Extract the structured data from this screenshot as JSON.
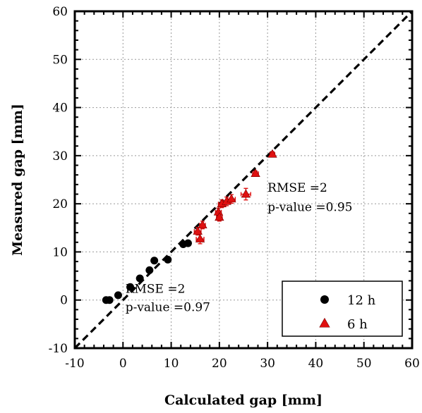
{
  "chart_data": {
    "type": "scatter",
    "title": "",
    "xlabel": "Calculated gap [mm]",
    "ylabel": "Measured gap [mm]",
    "xlim": [
      -10,
      60
    ],
    "ylim": [
      -10,
      60
    ],
    "x_ticks": [
      -10,
      0,
      10,
      20,
      30,
      40,
      50,
      60
    ],
    "y_ticks": [
      -10,
      0,
      10,
      20,
      30,
      40,
      50,
      60
    ],
    "x_tick_labels": [
      "-10",
      "0",
      "10",
      "20",
      "30",
      "40",
      "50",
      "60"
    ],
    "y_tick_labels": [
      "-10",
      "0",
      "10",
      "20",
      "30",
      "40",
      "50",
      "60"
    ],
    "grid": true,
    "legend_position": "bottom-right",
    "reference_line": {
      "style": "dashed",
      "color": "#000000",
      "from": [
        -10,
        -10
      ],
      "to": [
        60,
        60
      ]
    },
    "series": [
      {
        "name": "12 h",
        "marker": "circle",
        "color": "#000000",
        "points": [
          {
            "x": -3.5,
            "y": 0.0
          },
          {
            "x": -2.8,
            "y": 0.0
          },
          {
            "x": -1.0,
            "y": 1.0
          },
          {
            "x": 1.5,
            "y": 2.7
          },
          {
            "x": 3.5,
            "y": 4.5
          },
          {
            "x": 5.5,
            "y": 6.2
          },
          {
            "x": 6.5,
            "y": 8.2
          },
          {
            "x": 9.3,
            "y": 8.4
          },
          {
            "x": 12.5,
            "y": 11.6
          },
          {
            "x": 13.5,
            "y": 11.8
          }
        ]
      },
      {
        "name": "6 h",
        "marker": "triangle",
        "color": "#e01010",
        "points": [
          {
            "x": 15.5,
            "y": 14.3,
            "xerr": 0.7,
            "yerr": 0.8
          },
          {
            "x": 16.0,
            "y": 12.7,
            "xerr": 0.8,
            "yerr": 1.0
          },
          {
            "x": 16.5,
            "y": 15.6,
            "xerr": 0.6,
            "yerr": 0.8
          },
          {
            "x": 19.8,
            "y": 18.3,
            "xerr": 0.6,
            "yerr": 0.8
          },
          {
            "x": 20.0,
            "y": 17.2,
            "xerr": 0.6,
            "yerr": 0.8
          },
          {
            "x": 20.5,
            "y": 20.0,
            "xerr": 0.7,
            "yerr": 0.8
          },
          {
            "x": 21.5,
            "y": 20.5,
            "xerr": 0.8,
            "yerr": 0.9
          },
          {
            "x": 22.5,
            "y": 21.0,
            "xerr": 0.8,
            "yerr": 0.9
          },
          {
            "x": 25.5,
            "y": 22.0,
            "xerr": 1.0,
            "yerr": 1.2
          },
          {
            "x": 27.5,
            "y": 26.3,
            "xerr": 0.6,
            "yerr": 0.5
          },
          {
            "x": 31.0,
            "y": 30.3,
            "xerr": 0.5,
            "yerr": 0.5
          }
        ]
      }
    ],
    "annotations": [
      {
        "text": "RMSE =2",
        "x": 30.0,
        "y": 22.5
      },
      {
        "text": "p-value =0.95",
        "x": 30.0,
        "y": 18.5
      },
      {
        "text": "RMSE =2",
        "x": 0.5,
        "y": 1.5
      },
      {
        "text": "p-value =0.97",
        "x": 0.5,
        "y": -2.3
      }
    ]
  }
}
